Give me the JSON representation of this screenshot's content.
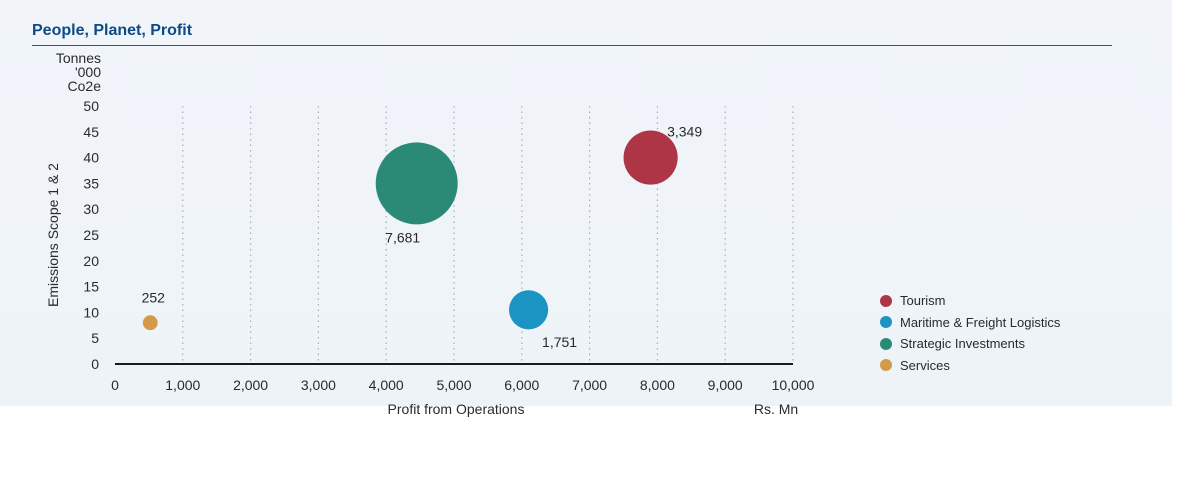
{
  "header": {
    "title": "People, Planet, Profit"
  },
  "chart_data": {
    "type": "bubble",
    "xlabel": "Profit from Operations",
    "xunit": "Rs. Mn",
    "ylabel": "Emissions Scope 1 & 2",
    "yunit_lines": [
      "Tonnes",
      "'000",
      "Co2e"
    ],
    "xlim": [
      0,
      10000
    ],
    "ylim": [
      0,
      50
    ],
    "xticks": [
      0,
      1000,
      2000,
      3000,
      4000,
      5000,
      6000,
      7000,
      8000,
      9000,
      10000
    ],
    "xtick_labels": [
      "0",
      "1,000",
      "2,000",
      "3,000",
      "4,000",
      "5,000",
      "6,000",
      "7,000",
      "8,000",
      "9,000",
      "10,000"
    ],
    "yticks": [
      0,
      5,
      10,
      15,
      20,
      25,
      30,
      35,
      40,
      45,
      50
    ],
    "ytick_labels": [
      "0",
      "5",
      "10",
      "15",
      "20",
      "25",
      "30",
      "35",
      "40",
      "45",
      "50"
    ],
    "grid": "vertical-dotted",
    "legend_position": "right",
    "series": [
      {
        "name": "Tourism",
        "x": 7900,
        "y": 40,
        "size": 3349,
        "size_label": "3,349",
        "color": "#ad3546"
      },
      {
        "name": "Maritime & Freight Logistics",
        "x": 6100,
        "y": 10.5,
        "size": 1751,
        "size_label": "1,751",
        "color": "#1b93c3"
      },
      {
        "name": "Strategic Investments",
        "x": 4450,
        "y": 35,
        "size": 7681,
        "size_label": "7,681",
        "color": "#2b8a76"
      },
      {
        "name": "Services",
        "x": 520,
        "y": 8,
        "size": 252,
        "size_label": "252",
        "color": "#d39a4a"
      }
    ]
  }
}
